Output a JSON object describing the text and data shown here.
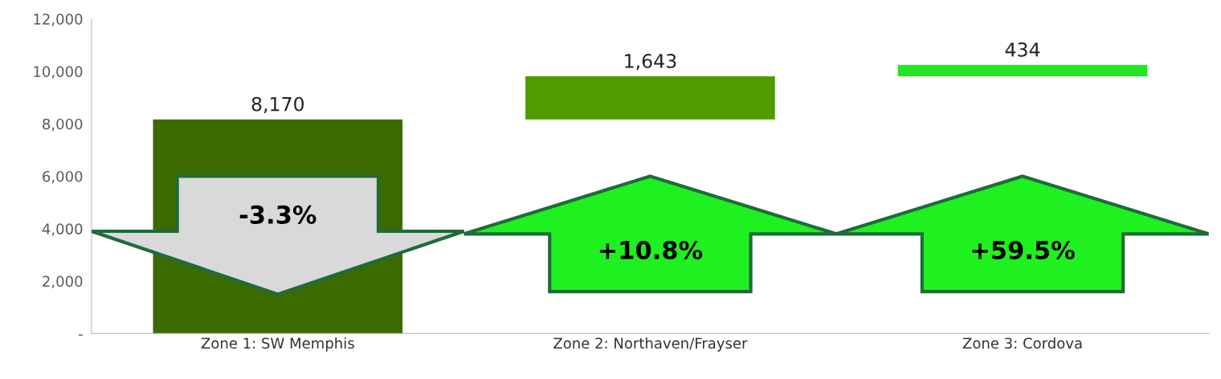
{
  "chart_data": {
    "type": "bar",
    "categories": [
      "Zone 1: SW Memphis",
      "Zone 2: Northaven/Frayser",
      "Zone 3: Cordova"
    ],
    "values": [
      8170,
      1643,
      434
    ],
    "base": [
      0,
      8170,
      9813
    ],
    "colors": [
      "#3b6a00",
      "#4e9c00",
      "#22e622"
    ],
    "value_labels": [
      "8,170",
      "1,643",
      "434"
    ],
    "ylim": [
      0,
      12000
    ],
    "yticks": [
      {
        "value": 0,
        "label": "-"
      },
      {
        "value": 2000,
        "label": "2,000"
      },
      {
        "value": 4000,
        "label": "4,000"
      },
      {
        "value": 6000,
        "label": "6,000"
      },
      {
        "value": 8000,
        "label": "8,000"
      },
      {
        "value": 10000,
        "label": "10,000"
      },
      {
        "value": 12000,
        "label": "12,000"
      }
    ],
    "annotations": [
      "-3.3%",
      "+10.8%",
      "+59.5%"
    ],
    "grid": false,
    "legend": false
  }
}
